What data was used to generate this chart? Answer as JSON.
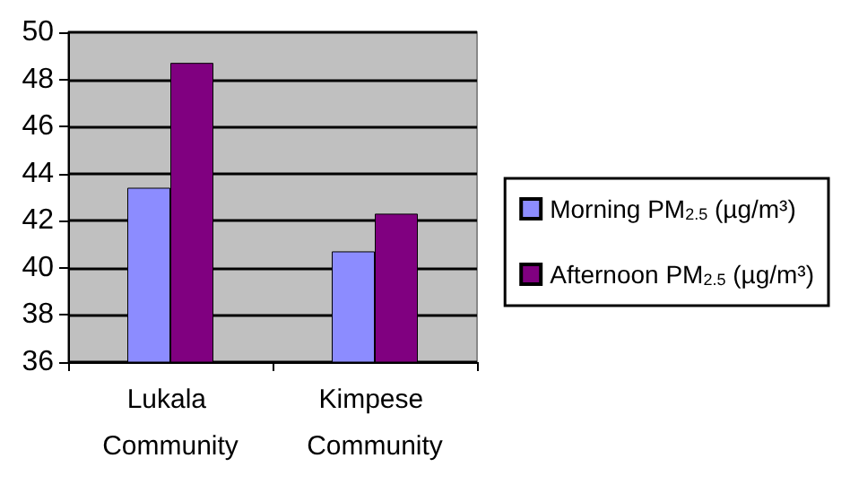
{
  "chart_data": {
    "type": "bar",
    "categories": [
      "Lukala Community",
      "Kimpese Community"
    ],
    "series": [
      {
        "name": "Morning PM$_{2.5}$ (µg/m³)",
        "color": "#8c8cff",
        "values": [
          43.4,
          40.7
        ]
      },
      {
        "name": "Afternoon PM$_{2.5}$ (µg/m³)",
        "color": "#800080",
        "values": [
          48.7,
          42.3
        ]
      }
    ],
    "ylim": [
      36,
      50
    ],
    "yticks": [
      36,
      38,
      40,
      42,
      44,
      46,
      48,
      50
    ],
    "grid": "y",
    "legend": "right"
  }
}
